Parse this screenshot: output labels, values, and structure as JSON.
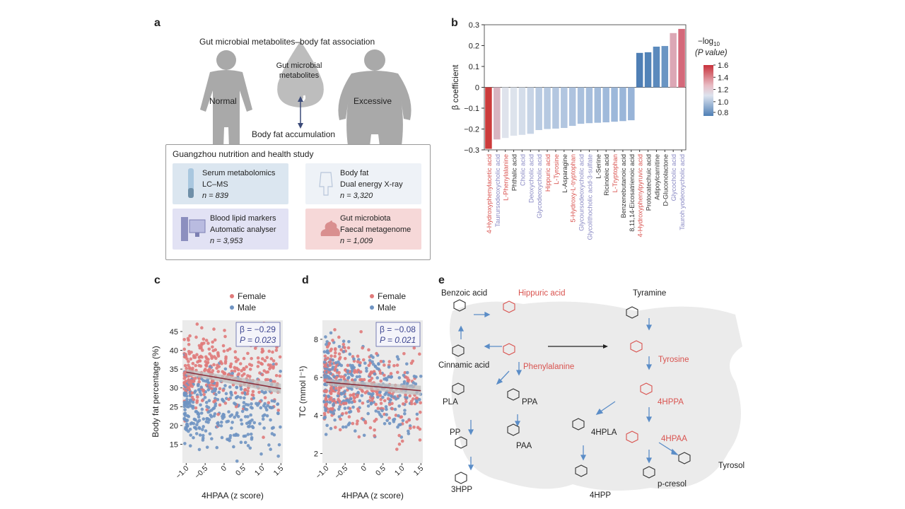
{
  "panel_a": {
    "letter": "a",
    "title": "Gut microbial metabolites–body fat association",
    "drop_label_1": "Gut microbial",
    "drop_label_2": "metabolites",
    "normal": "Normal",
    "excessive": "Excessive",
    "accumulation": "Body fat accumulation",
    "study": "Guangzhou nutrition and health study",
    "cards": [
      {
        "l1": "Serum metabolomics",
        "l2": "LC–MS",
        "l3": "n = 839",
        "color": "#dbe6f0"
      },
      {
        "l1": "Body fat",
        "l2": "Dual energy X-ray",
        "l3": "n = 3,320",
        "color": "#eef2f7"
      },
      {
        "l1": "Blood lipid markers",
        "l2": "Automatic analyser",
        "l3": "n = 3,953",
        "color": "#e2e2f4"
      },
      {
        "l1": "Gut microbiota",
        "l2": "Faecal metagenome",
        "l3": "n = 1,009",
        "color": "#f6d8d8"
      }
    ]
  },
  "chart_data": [
    {
      "panel": "b",
      "type": "bar",
      "ylabel": "β coefficient",
      "ylim": [
        -0.3,
        0.3
      ],
      "yticks": [
        "0.3",
        "0.2",
        "0.1",
        "0",
        "−0.1",
        "−0.2",
        "−0.3"
      ],
      "legend_title_1": "−log",
      "legend_title_sub": "10",
      "legend_title_2": "(P value)",
      "legend_ticks": [
        "1.6",
        "1.4",
        "1.2",
        "1.0",
        "0.8"
      ],
      "categories": [
        "4-Hydroxyphenylacetic acid",
        "Taurursodeoxycholic acid",
        "L-Phenylalanine",
        "Phthalic acid",
        "Cholic acid",
        "Deoxycholic acid",
        "Glycodeoxycholic acid",
        "Hippuric acid",
        "L-Tyrosine",
        "L-Asparagine",
        "5-Hydroxy-L-tryptophan",
        "Glycoursodeoxycholic acid",
        "Glycolithocholic acid-3-sulfate",
        "L-Serine",
        "Ricinoleic acid",
        "L-Tryptophan",
        "Benzenebutanoic acid",
        "8,11,14-Eicosatrienoic acid",
        "4-Hydroxyphenylpyruvic acid",
        "Protocatechuic acid",
        "Adipoylcarnitine",
        "D-Gluconolactone",
        "Glycocholic acid",
        "Tauroh yodeoxycholic acid"
      ],
      "label_colors": [
        "#d9534f",
        "#8a8ac4",
        "#d9534f",
        "#333333",
        "#8a8ac4",
        "#8a8ac4",
        "#8a8ac4",
        "#d9534f",
        "#d9534f",
        "#333333",
        "#d9534f",
        "#8a8ac4",
        "#8a8ac4",
        "#333333",
        "#333333",
        "#d9534f",
        "#333333",
        "#333333",
        "#d9534f",
        "#333333",
        "#333333",
        "#333333",
        "#8a8ac4",
        "#8a8ac4"
      ],
      "values": [
        -0.295,
        -0.25,
        -0.243,
        -0.232,
        -0.228,
        -0.223,
        -0.205,
        -0.2,
        -0.198,
        -0.195,
        -0.185,
        -0.175,
        -0.172,
        -0.17,
        -0.168,
        -0.165,
        -0.162,
        -0.158,
        0.165,
        0.168,
        0.195,
        0.198,
        0.26,
        0.28
      ],
      "bar_colors": [
        "#cc3b3b",
        "#d8b4c0",
        "#dfe3ec",
        "#dde3ec",
        "#d4ddea",
        "#c7d4e6",
        "#b9cbe2",
        "#b6c9e1",
        "#b4c7e0",
        "#b2c6e0",
        "#aec3df",
        "#a9c0dd",
        "#a6bedc",
        "#a3bcdb",
        "#a0badb",
        "#9db8da",
        "#9ab6d9",
        "#98b4d8",
        "#4f7fb5",
        "#5283b8",
        "#5b8abd",
        "#6a95c3",
        "#dca7b5",
        "#d4697a"
      ]
    },
    {
      "panel": "c",
      "type": "scatter",
      "xlabel": "4HPAA (z score)",
      "ylabel": "Body fat percentage (%)",
      "xlim": [
        -1.1,
        1.55
      ],
      "ylim": [
        10,
        48
      ],
      "xticks": [
        "−1.0",
        "−0.5",
        "0",
        "0.5",
        "1.0",
        "1.5"
      ],
      "yticks": [
        "45",
        "40",
        "35",
        "30",
        "25",
        "20",
        "15"
      ],
      "legend": [
        "Female",
        "Male"
      ],
      "stats_beta": "β = −0.29",
      "stats_p": "P = 0.023",
      "trend": {
        "x0": -1.0,
        "y0": 34.2,
        "x1": 1.5,
        "y1": 29.8
      },
      "series": [
        {
          "name": "Female",
          "color": "#e07a7a",
          "y_mean": 34,
          "y_sd": 5
        },
        {
          "name": "Male",
          "color": "#6f93c2",
          "y_mean": 24,
          "y_sd": 5
        }
      ]
    },
    {
      "panel": "d",
      "type": "scatter",
      "xlabel": "4HPAA (z score)",
      "ylabel": "TC (mmol l⁻¹)",
      "xlim": [
        -1.1,
        1.55
      ],
      "ylim": [
        1.5,
        9
      ],
      "xticks": [
        "−1.0",
        "−0.5",
        "0",
        "0.5",
        "1.0",
        "1.5"
      ],
      "yticks": [
        "8",
        "6",
        "4",
        "2"
      ],
      "legend": [
        "Female",
        "Male"
      ],
      "stats_beta": "β = −0.08",
      "stats_p": "P = 0.021",
      "trend": {
        "x0": -1.0,
        "y0": 5.75,
        "x1": 1.5,
        "y1": 5.3
      },
      "series": [
        {
          "name": "Female",
          "color": "#e07a7a",
          "y_mean": 5.5,
          "y_sd": 1.1
        },
        {
          "name": "Male",
          "color": "#6f93c2",
          "y_mean": 5.3,
          "y_sd": 1.1
        }
      ]
    }
  ],
  "panel_e": {
    "letter": "e",
    "labels": {
      "benzoic": "Benzoic acid",
      "hippuric": "Hippuric acid",
      "tyramine": "Tyramine",
      "cinnamic": "Cinnamic acid",
      "phenylalanine": "Phenylalanine",
      "tyrosine": "Tyrosine",
      "pla": "PLA",
      "ppa": "PPA",
      "hppa": "4HPPA",
      "hpla": "4HPLA",
      "pp": "PP",
      "paa": "PAA",
      "hpaa": "4HPAA",
      "tyrosol": "Tyrosol",
      "hpp3": "3HPP",
      "hpp4": "4HPP",
      "pcresol": "p-cresol"
    },
    "red": "#d9534f",
    "blue": "#5b8dc7"
  },
  "letters": {
    "c": "c",
    "d": "d",
    "b": "b"
  }
}
